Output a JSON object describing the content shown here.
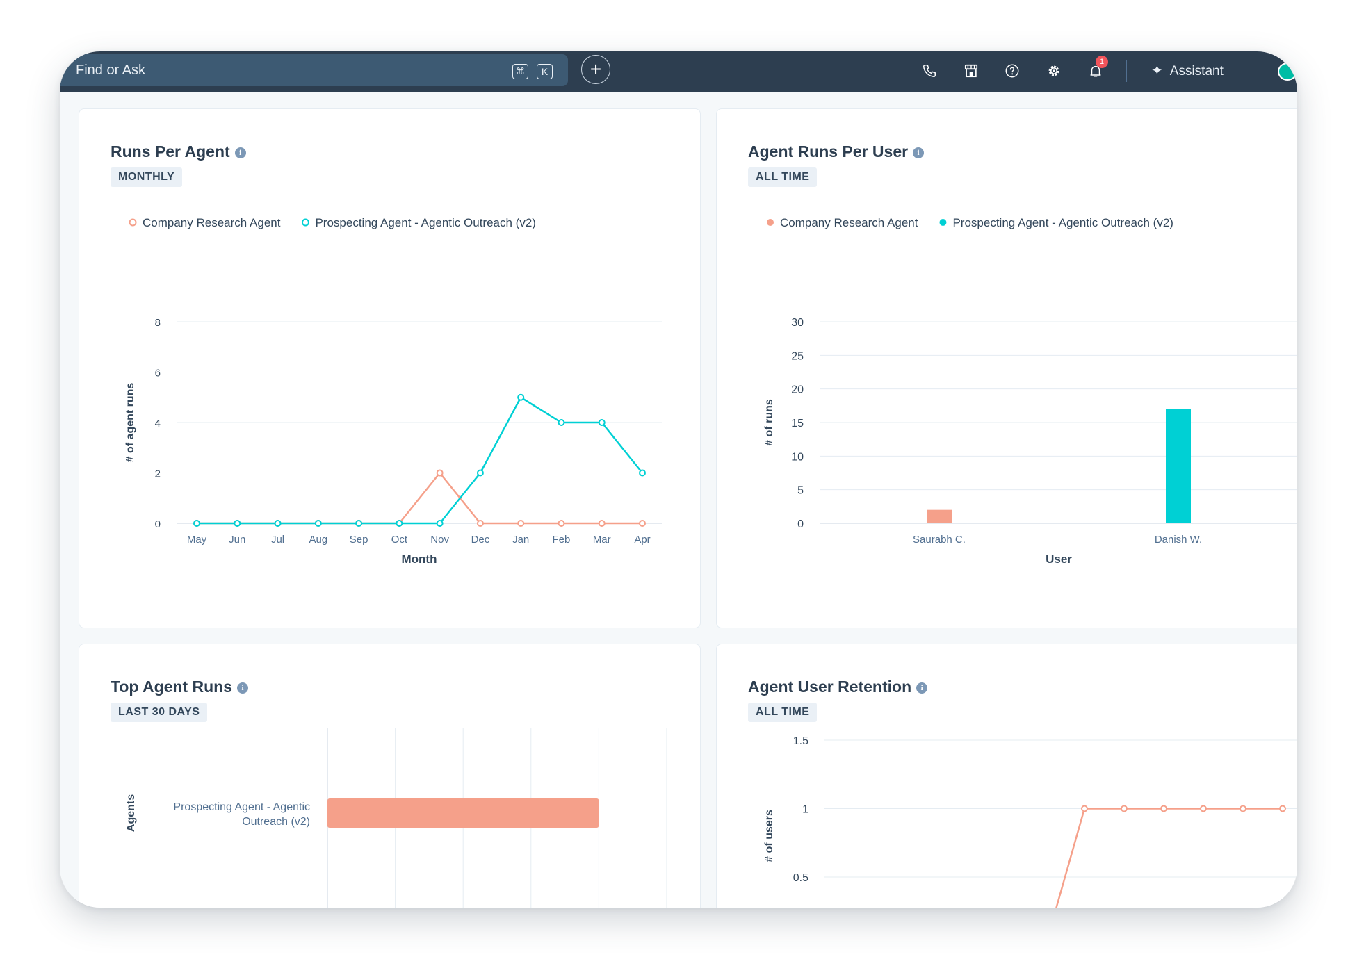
{
  "topbar": {
    "search_placeholder": "Find or Ask",
    "shortcut_keys": [
      "⌘",
      "K"
    ],
    "add_label": "+",
    "notification_count": "1",
    "assistant_label": "Assistant",
    "icons": [
      "phone-icon",
      "marketplace-icon",
      "help-icon",
      "settings-icon",
      "bell-icon",
      "sparkle-icon",
      "account-avatar-icon"
    ]
  },
  "cards": {
    "runs_per_agent": {
      "title": "Runs Per Agent",
      "badge": "MONTHLY"
    },
    "agent_runs_per_user": {
      "title": "Agent Runs Per User",
      "badge": "ALL TIME"
    },
    "top_agent_runs": {
      "title": "Top Agent Runs",
      "badge": "LAST 30 DAYS"
    },
    "agent_user_retention": {
      "title": "Agent User Retention",
      "badge": "ALL TIME"
    }
  },
  "colors": {
    "orange": "#f5a08a",
    "teal": "#00d0d4",
    "axis_text": "#516f90",
    "grid": "#e5ecf2"
  },
  "chart_data": [
    {
      "type": "line",
      "title": "Runs Per Agent",
      "xlabel": "Month",
      "ylabel": "# of agent runs",
      "categories": [
        "May",
        "Jun",
        "Jul",
        "Aug",
        "Sep",
        "Oct",
        "Nov",
        "Dec",
        "Jan",
        "Feb",
        "Mar",
        "Apr"
      ],
      "series": [
        {
          "name": "Company Research Agent",
          "color": "#f5a08a",
          "values": [
            0,
            0,
            0,
            0,
            0,
            0,
            2,
            0,
            0,
            0,
            0,
            0
          ]
        },
        {
          "name": "Prospecting Agent - Agentic Outreach (v2)",
          "color": "#00d0d4",
          "values": [
            0,
            0,
            0,
            0,
            0,
            0,
            0,
            2,
            5,
            4,
            4,
            2
          ]
        }
      ],
      "ylim": [
        0,
        8
      ],
      "yticks": [
        0,
        2,
        4,
        6,
        8
      ],
      "grid": true,
      "legend": "top-left"
    },
    {
      "type": "bar",
      "title": "Agent Runs Per User",
      "xlabel": "User",
      "ylabel": "# of runs",
      "categories": [
        "Saurabh C.",
        "Danish W."
      ],
      "series": [
        {
          "name": "Company Research Agent",
          "color": "#f5a08a",
          "values": [
            2,
            0
          ]
        },
        {
          "name": "Prospecting Agent - Agentic Outreach (v2)",
          "color": "#00d0d4",
          "values": [
            0,
            17
          ]
        }
      ],
      "ylim": [
        0,
        30
      ],
      "yticks": [
        0,
        5,
        10,
        15,
        20,
        25,
        30
      ],
      "grid": true,
      "legend": "top-left"
    },
    {
      "type": "bar",
      "orientation": "horizontal",
      "title": "Top Agent Runs",
      "ylabel": "Agents",
      "categories": [
        "Prospecting Agent - Agentic Outreach (v2)"
      ],
      "category_lines": [
        "Prospecting Agent - Agentic",
        "Outreach (v2)"
      ],
      "values": [
        4
      ],
      "xlim": [
        0,
        5
      ],
      "color": "#f5a08a",
      "grid": true
    },
    {
      "type": "line",
      "title": "Agent User Retention",
      "ylabel": "# of users",
      "series": [
        {
          "color": "#f5a08a",
          "values": [
            0,
            1,
            1,
            1,
            1,
            1,
            1
          ]
        }
      ],
      "ylim": [
        0,
        1.5
      ],
      "yticks": [
        0.5,
        1,
        1.5
      ],
      "grid": true
    }
  ]
}
